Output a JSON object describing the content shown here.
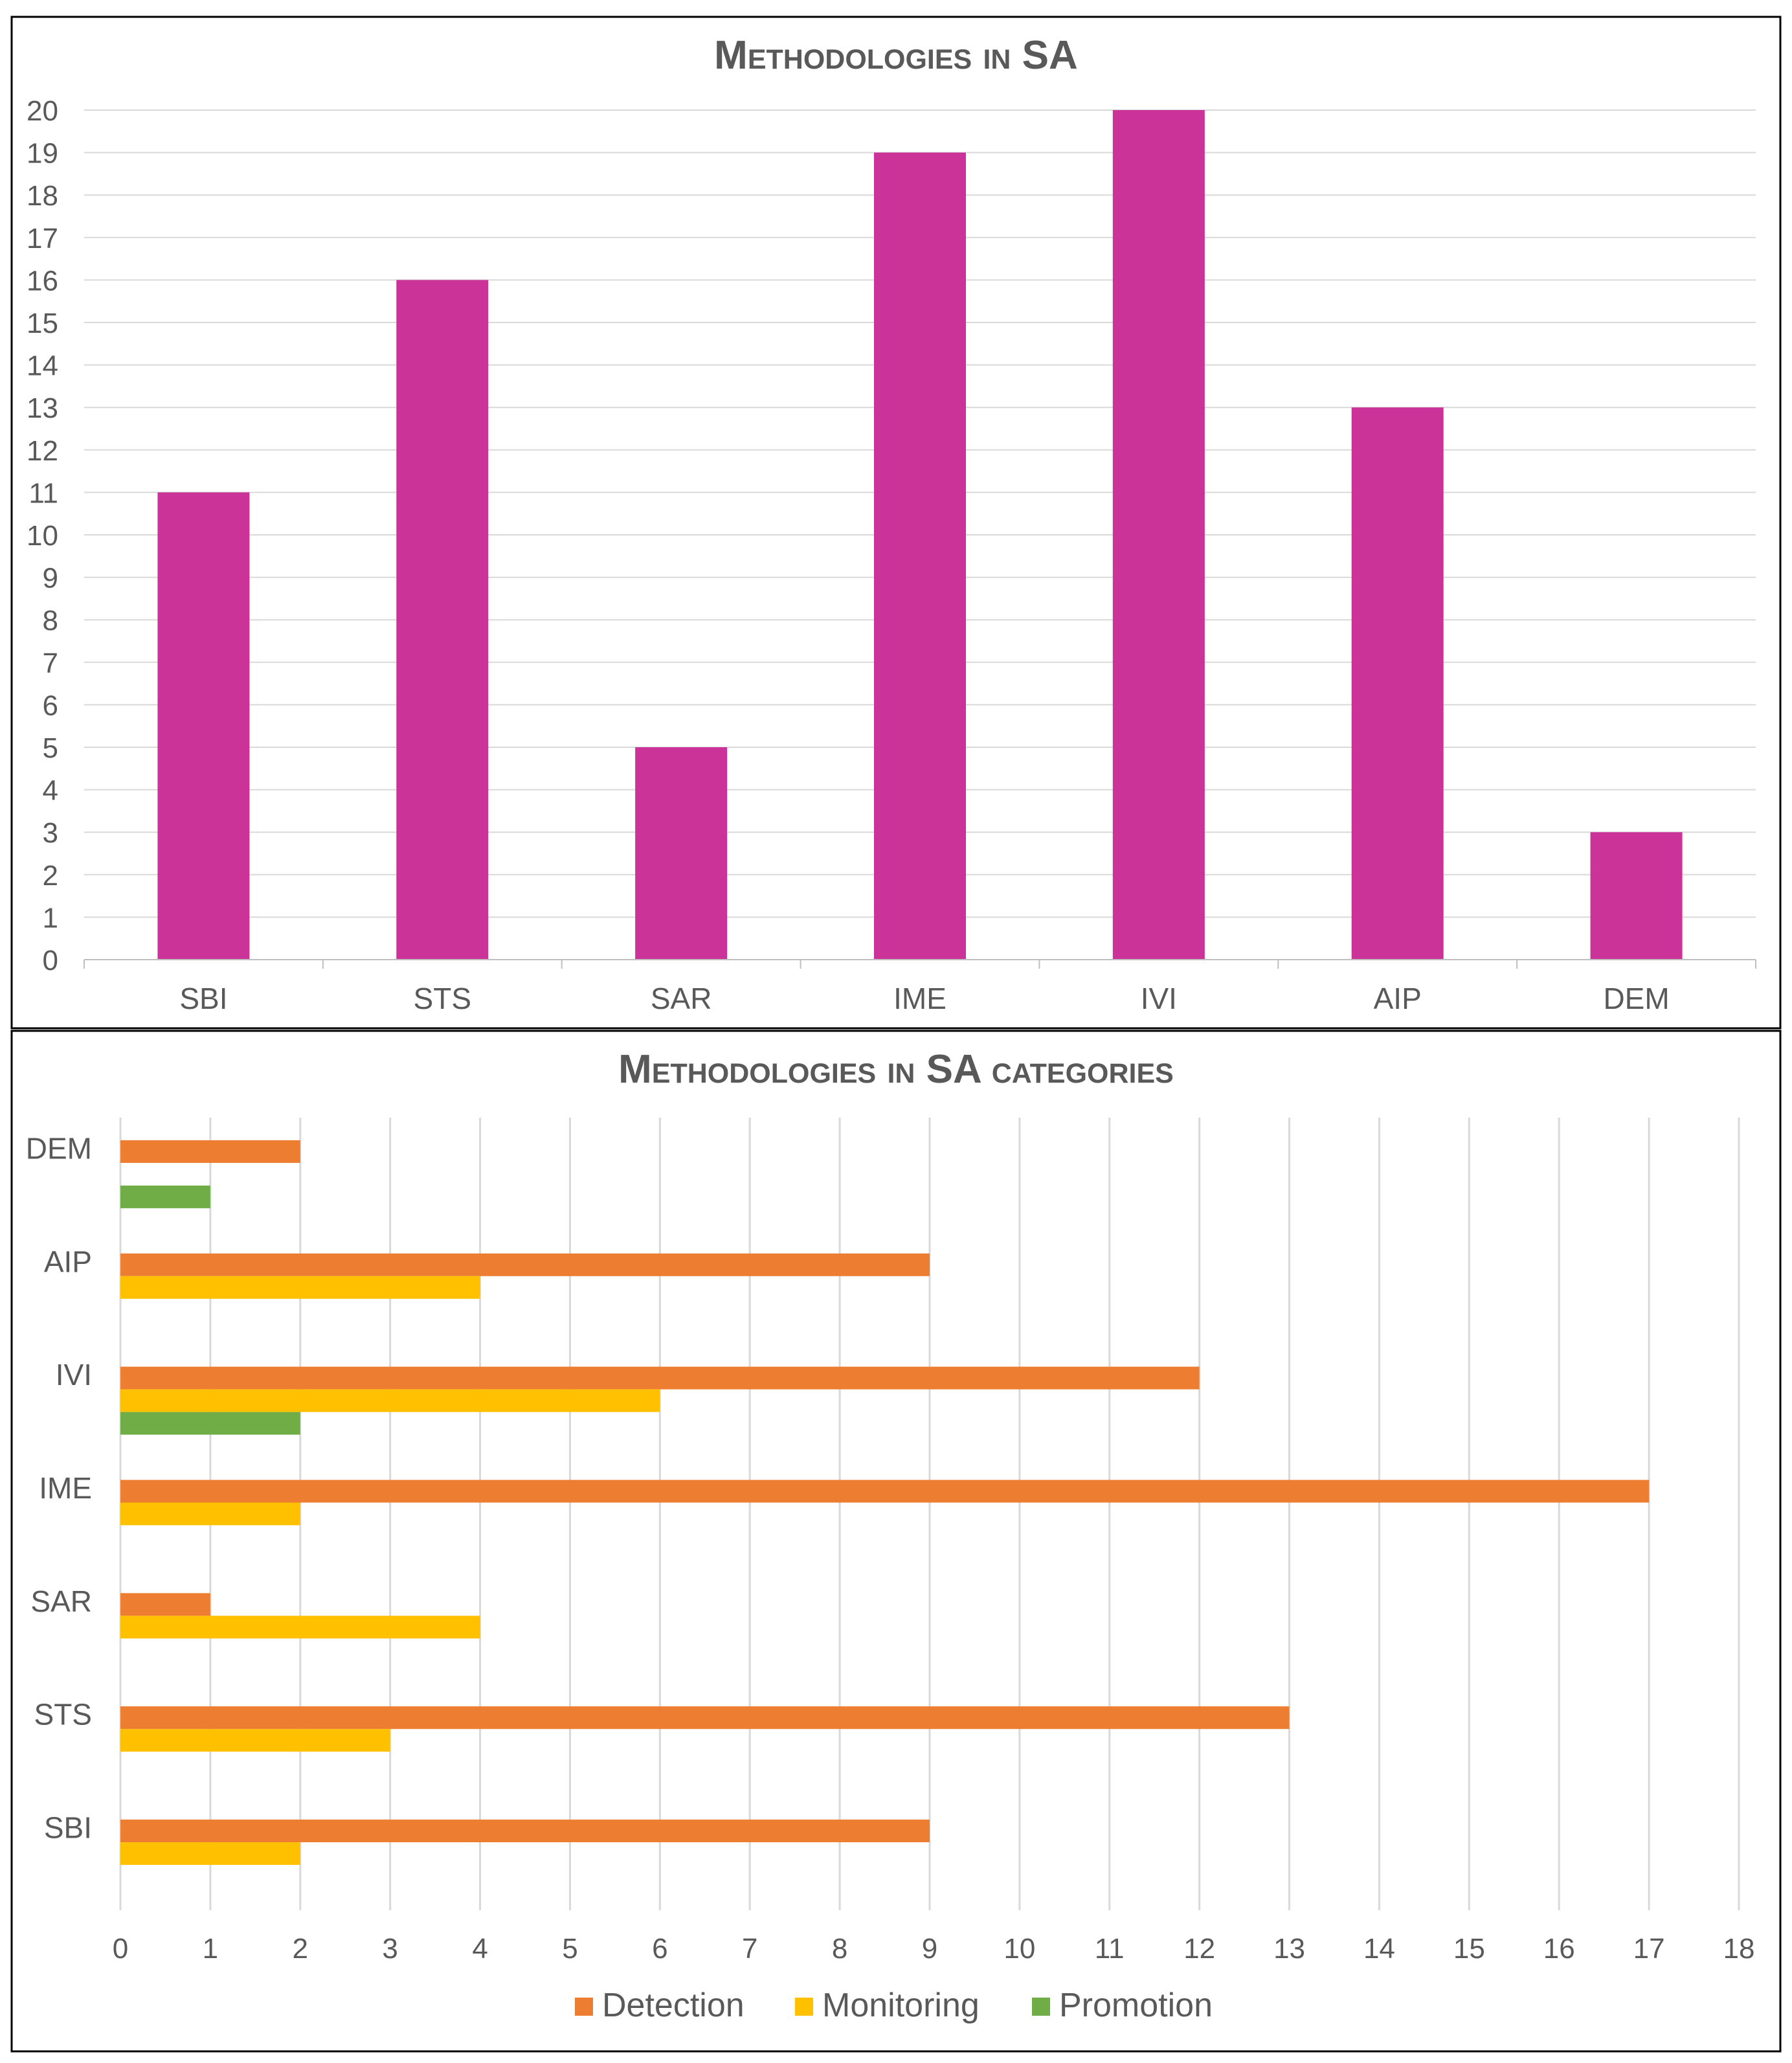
{
  "chart_data": [
    {
      "type": "bar",
      "title": "Methodologies in SA",
      "categories": [
        "SBI",
        "STS",
        "SAR",
        "IME",
        "IVI",
        "AIP",
        "DEM"
      ],
      "values": [
        11,
        16,
        5,
        19,
        20,
        13,
        3
      ],
      "ylim": [
        0,
        20
      ],
      "yticks": [
        0,
        1,
        2,
        3,
        4,
        5,
        6,
        7,
        8,
        9,
        10,
        11,
        12,
        13,
        14,
        15,
        16,
        17,
        18,
        19,
        20
      ],
      "xlabel": "",
      "ylabel": "",
      "grid": true,
      "color": "#CC3399"
    },
    {
      "type": "bar",
      "orientation": "horizontal",
      "title": "Methodologies in SA categories",
      "categories": [
        "SBI",
        "STS",
        "SAR",
        "IME",
        "IVI",
        "AIP",
        "DEM"
      ],
      "series": [
        {
          "name": "Detection",
          "color": "#ED7D31",
          "values": [
            9,
            13,
            1,
            17,
            12,
            9,
            2
          ]
        },
        {
          "name": "Monitoring",
          "color": "#FFC000",
          "values": [
            2,
            3,
            4,
            2,
            6,
            4,
            0
          ]
        },
        {
          "name": "Promotion",
          "color": "#70AD47",
          "values": [
            0,
            0,
            0,
            0,
            2,
            0,
            1
          ]
        }
      ],
      "xlim": [
        0,
        18
      ],
      "xticks": [
        0,
        1,
        2,
        3,
        4,
        5,
        6,
        7,
        8,
        9,
        10,
        11,
        12,
        13,
        14,
        15,
        16,
        17,
        18
      ],
      "xlabel": "",
      "ylabel": "",
      "grid": true,
      "legend": "bottom"
    }
  ]
}
